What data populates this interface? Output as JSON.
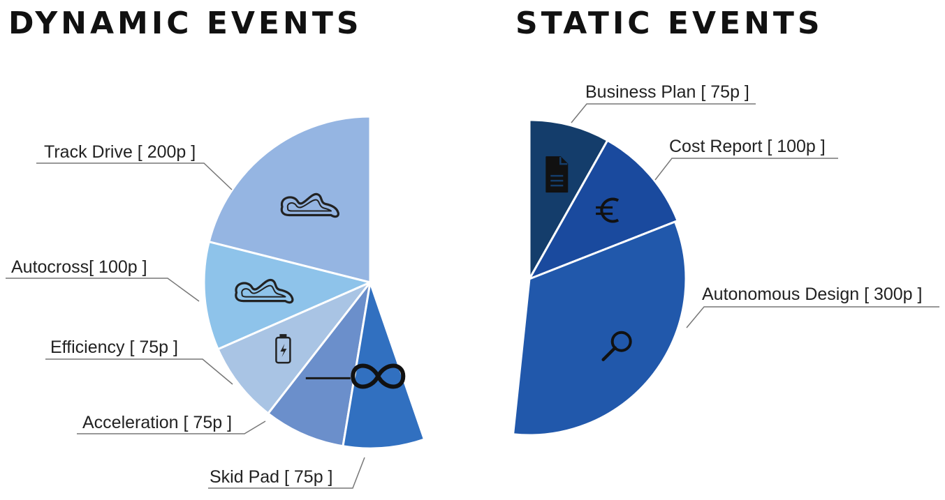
{
  "headings": {
    "dynamic": "DYNAMIC EVENTS",
    "static": "STATIC EVENTS"
  },
  "chart_data": [
    {
      "type": "pie",
      "title": "DYNAMIC EVENTS",
      "slices": [
        {
          "label": "Track Drive [ 200p ]",
          "value": 200,
          "color": "#95b5e2",
          "icon": "race-track-icon"
        },
        {
          "label": "Autocross[ 100p ]",
          "value": 100,
          "color": "#8ec3ea",
          "icon": "race-track-icon"
        },
        {
          "label": "Efficiency [ 75p ]",
          "value": 75,
          "color": "#a9c4e4",
          "icon": "battery-charging-icon"
        },
        {
          "label": "Acceleration [ 75p ]",
          "value": 75,
          "color": "#6b8fcb",
          "icon": "straight-line-icon"
        },
        {
          "label": "Skid Pad [ 75p ]",
          "value": 75,
          "color": "#3170c0",
          "icon": "infinity-icon"
        }
      ]
    },
    {
      "type": "pie",
      "title": "STATIC EVENTS",
      "slices": [
        {
          "label": "Business Plan [ 75p ]",
          "value": 75,
          "color": "#143d6b",
          "icon": "document-icon"
        },
        {
          "label": "Cost Report [ 100p ]",
          "value": 100,
          "color": "#1a4a9e",
          "icon": "euro-icon"
        },
        {
          "label": "Autonomous Design [ 300p ]",
          "value": 300,
          "color": "#2158ab",
          "icon": "magnifier-icon"
        }
      ]
    }
  ]
}
